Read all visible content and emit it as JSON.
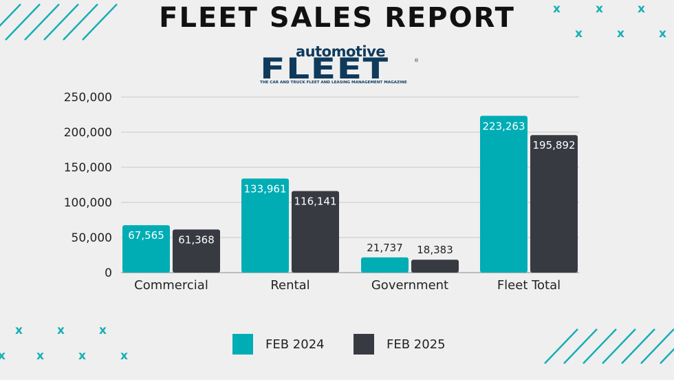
{
  "title": "FLEET SALES REPORT",
  "logo": {
    "top": "automotive",
    "main": "FLEET",
    "reg": "®",
    "tagline": "THE CAR AND TRUCK FLEET AND LEASING MANAGEMENT MAGAZINE"
  },
  "decor_glyph": "x",
  "colors": {
    "series_2024": "#00adb5",
    "series_2025": "#383a42",
    "accent": "#16aeb4",
    "grid": "#c9c9c9"
  },
  "chart_data": {
    "type": "bar",
    "title": "FLEET SALES REPORT",
    "categories": [
      "Commercial",
      "Rental",
      "Government",
      "Fleet Total"
    ],
    "series": [
      {
        "name": "FEB 2024",
        "values": [
          67565,
          133961,
          21737,
          223263
        ],
        "labels": [
          "67,565",
          "133,961",
          "21,737",
          "223,263"
        ]
      },
      {
        "name": "FEB 2025",
        "values": [
          61368,
          116141,
          18383,
          195892
        ],
        "labels": [
          "61,368",
          "116,141",
          "18,383",
          "195,892"
        ]
      }
    ],
    "yticks": [
      "0",
      "50,000",
      "100,000",
      "150,000",
      "200,000",
      "250,000"
    ],
    "ytick_values": [
      0,
      50000,
      100000,
      150000,
      200000,
      250000
    ],
    "ylim": [
      0,
      250000
    ],
    "grid": true,
    "legend_position": "bottom-center"
  }
}
